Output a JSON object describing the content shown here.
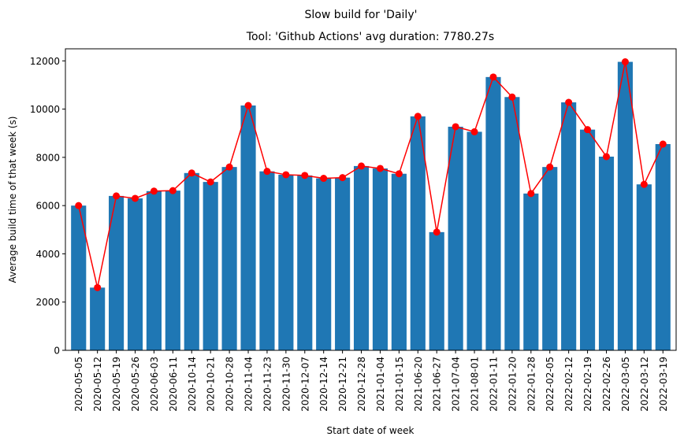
{
  "chart_data": {
    "type": "bar",
    "title": "Slow build for 'Daily'",
    "subtitle": "Tool: 'Github Actions' avg duration: 7780.27s",
    "xlabel": "Start date of week",
    "ylabel": "Average build time of that week (s)",
    "ylim": [
      0,
      12500
    ],
    "yticks": [
      0,
      2000,
      4000,
      6000,
      8000,
      10000,
      12000
    ],
    "categories": [
      "2020-05-05",
      "2020-05-12",
      "2020-05-19",
      "2020-05-26",
      "2020-06-03",
      "2020-06-11",
      "2020-10-14",
      "2020-10-21",
      "2020-10-28",
      "2020-11-04",
      "2020-11-23",
      "2020-11-30",
      "2020-12-07",
      "2020-12-14",
      "2020-12-21",
      "2020-12-28",
      "2021-01-04",
      "2021-01-15",
      "2021-06-20",
      "2021-06-27",
      "2021-07-04",
      "2021-08-01",
      "2022-01-11",
      "2022-01-20",
      "2022-01-28",
      "2022-02-05",
      "2022-02-12",
      "2022-02-19",
      "2022-02-26",
      "2022-03-05",
      "2022-03-12",
      "2022-03-19"
    ],
    "series": [
      {
        "kind": "bar",
        "color": "#1f77b4",
        "values": [
          6000,
          2600,
          6400,
          6300,
          6600,
          6620,
          7350,
          6980,
          7600,
          10150,
          7420,
          7280,
          7250,
          7130,
          7160,
          7640,
          7540,
          7320,
          9700,
          4900,
          9270,
          9060,
          11330,
          10500,
          6500,
          7600,
          10280,
          9150,
          8030,
          11960,
          6880,
          8550
        ]
      },
      {
        "kind": "line",
        "color": "#ff0000",
        "marker": "circle",
        "values": [
          6000,
          2600,
          6400,
          6300,
          6600,
          6620,
          7350,
          6980,
          7600,
          10150,
          7420,
          7280,
          7250,
          7130,
          7160,
          7640,
          7540,
          7320,
          9700,
          4900,
          9270,
          9060,
          11330,
          10500,
          6500,
          7600,
          10280,
          9150,
          8030,
          11960,
          6880,
          8550
        ]
      }
    ],
    "grid": false,
    "legend": "none"
  }
}
